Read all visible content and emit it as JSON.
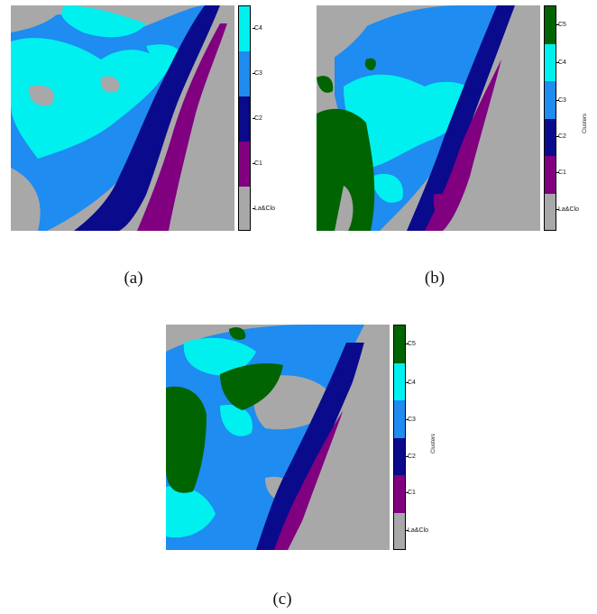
{
  "colors": {
    "La&Clo": "#a8a8a8",
    "C1": "#800080",
    "C2": "#0a0a8c",
    "C3": "#1e8cf0",
    "C4": "#00f0f0",
    "C5": "#006400"
  },
  "panels": [
    {
      "caption": "(a)",
      "legend_title": "",
      "classes": [
        "La&Clo",
        "C1",
        "C2",
        "C3",
        "C4"
      ]
    },
    {
      "caption": "(b)",
      "legend_title": "Clusters",
      "classes": [
        "La&Clo",
        "C1",
        "C2",
        "C3",
        "C4",
        "C5"
      ]
    },
    {
      "caption": "(c)",
      "legend_title": "Clusters",
      "classes": [
        "La&Clo",
        "C1",
        "C2",
        "C3",
        "C4",
        "C5"
      ]
    }
  ]
}
